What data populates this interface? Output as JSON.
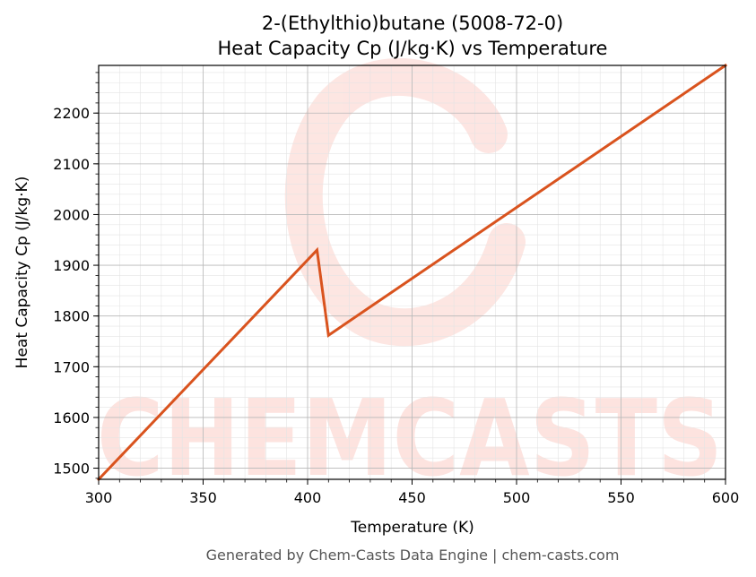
{
  "chart_data": {
    "type": "line",
    "title": "2-(Ethylthio)butane (5008-72-0)",
    "subtitle": "Heat Capacity Cp (J/kg·K) vs Temperature",
    "xlabel": "Temperature (K)",
    "ylabel": "Heat Capacity Cp (J/kg·K)",
    "xlim": [
      300,
      600
    ],
    "ylim": [
      1478,
      2294
    ],
    "xticks": [
      300,
      350,
      400,
      450,
      500,
      550,
      600
    ],
    "yticks": [
      1500,
      1600,
      1700,
      1800,
      1900,
      2000,
      2100,
      2200
    ],
    "grid": true,
    "legend": "none",
    "series": [
      {
        "color": "#d9531e",
        "x": [
          300,
          404.5,
          410,
          600
        ],
        "y": [
          1478,
          1930,
          1762,
          2294
        ]
      }
    ]
  },
  "watermark": {
    "text": "CHEMCASTS",
    "color": "#fde3df"
  },
  "footer": "Generated by Chem-Casts Data Engine | chem-casts.com"
}
